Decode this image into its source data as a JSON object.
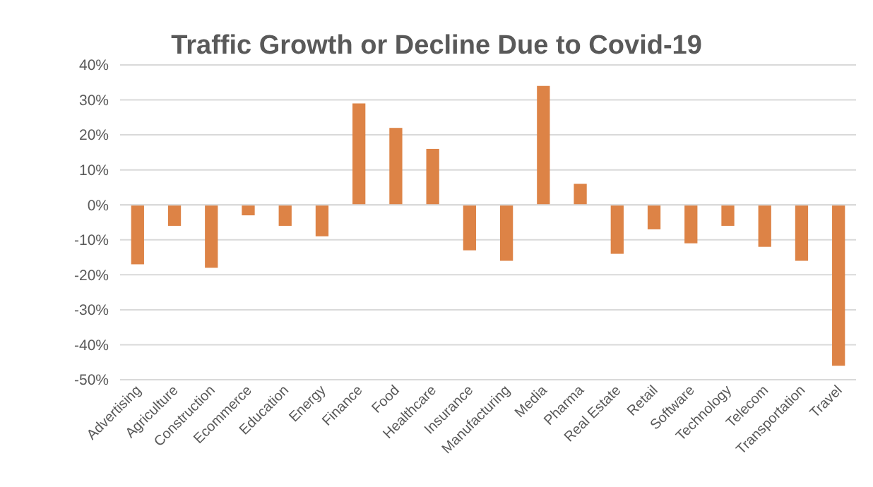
{
  "chart_data": {
    "type": "bar",
    "title": "Traffic Growth or Decline Due to Covid-19",
    "categories": [
      "Advertising",
      "Agriculture",
      "Construction",
      "Ecommerce",
      "Education",
      "Energy",
      "Finance",
      "Food",
      "Healthcare",
      "Insurance",
      "Manufacturing",
      "Media",
      "Pharma",
      "Real Estate",
      "Retail",
      "Software",
      "Technology",
      "Telecom",
      "Transportation",
      "Travel"
    ],
    "values": [
      -17,
      -6,
      -18,
      -3,
      -6,
      -9,
      29,
      22,
      16,
      -13,
      -16,
      34,
      6,
      -14,
      -7,
      -11,
      -6,
      -12,
      -16,
      -46
    ],
    "color": "#dd8346",
    "ylim": [
      -50,
      40
    ],
    "yticks": [
      {
        "value": -50,
        "label": "-50%"
      },
      {
        "value": -40,
        "label": "-40%"
      },
      {
        "value": -30,
        "label": "-30%"
      },
      {
        "value": -20,
        "label": "-20%"
      },
      {
        "value": -10,
        "label": "-10%"
      },
      {
        "value": 0,
        "label": "0%"
      },
      {
        "value": 10,
        "label": "10%"
      },
      {
        "value": 20,
        "label": "20%"
      },
      {
        "value": 30,
        "label": "30%"
      },
      {
        "value": 40,
        "label": "40%"
      }
    ],
    "grid": "y"
  }
}
